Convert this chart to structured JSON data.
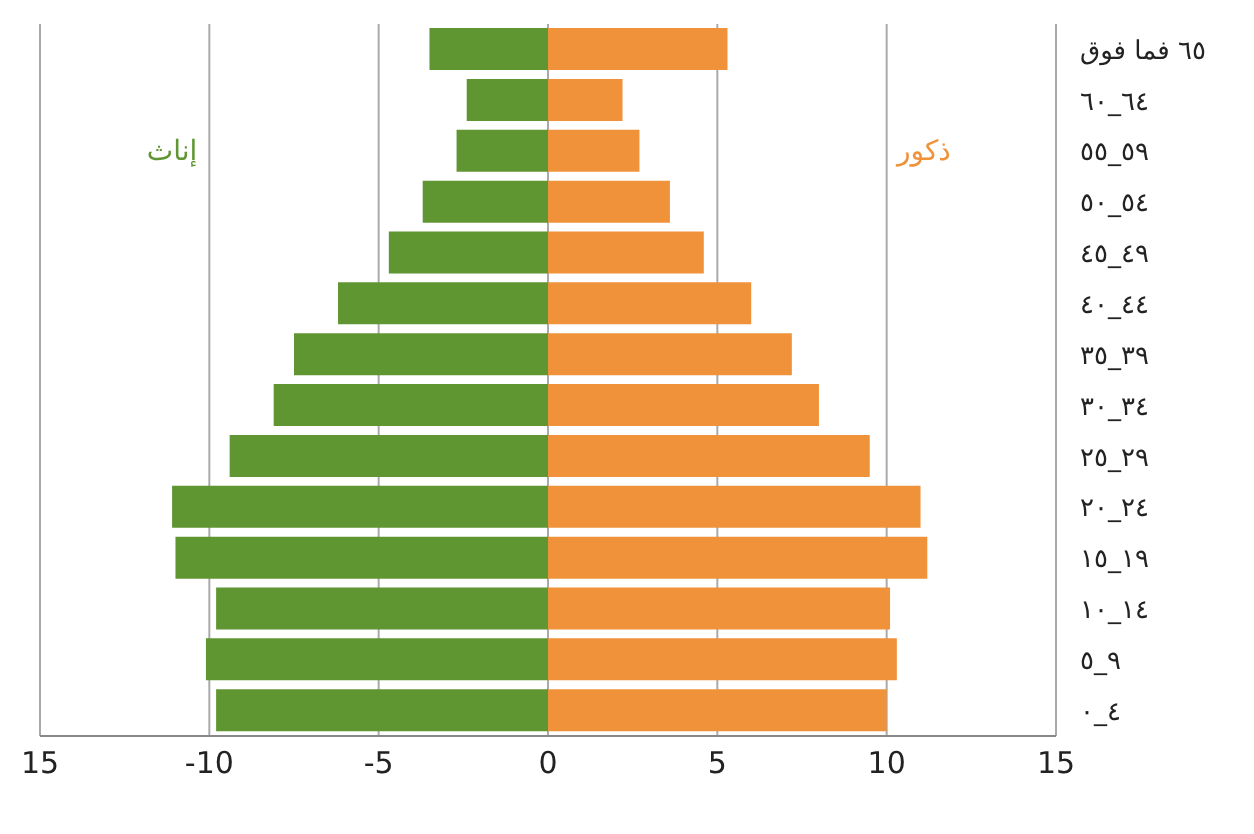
{
  "chart_data": {
    "type": "bar",
    "orientation": "horizontal",
    "stacked": true,
    "categories": [
      "٦٥ فما فوق",
      "٦٤_٦٠",
      "٥٩_٥٥",
      "٥٤_٥٠",
      "٤٩_٤٥",
      "٤٤_٤٠",
      "٣٩_٣٥",
      "٣٤_٣٠",
      "٢٩_٢٥",
      "٢٤_٢٠",
      "١٩_١٥",
      "١٤_١٠",
      "٩_٥",
      "٤_٠"
    ],
    "series": [
      {
        "name": "إناث",
        "color": "#5f9632",
        "values": [
          -3.5,
          -2.4,
          -2.7,
          -3.7,
          -4.7,
          -6.2,
          -7.5,
          -8.1,
          -9.4,
          -11.1,
          -11,
          -9.8,
          -10.1,
          -9.8
        ]
      },
      {
        "name": "ذكور",
        "color": "#f0923a",
        "values": [
          5.3,
          2.2,
          2.7,
          3.6,
          4.6,
          6,
          7.2,
          8,
          9.5,
          11,
          11.2,
          10.1,
          10.3,
          10
        ]
      }
    ],
    "xlim": [
      -15,
      15
    ],
    "xticks": [
      {
        "value": -15,
        "label": "15"
      },
      -10,
      -5,
      0,
      5,
      10,
      15
    ],
    "grid": "x",
    "legend": false
  }
}
